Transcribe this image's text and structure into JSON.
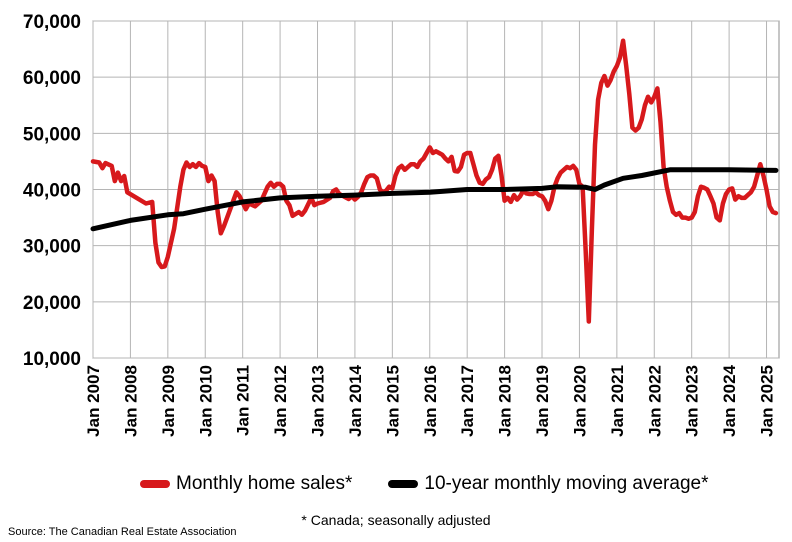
{
  "chart_data": {
    "type": "line",
    "title": "",
    "xlabel": "",
    "ylabel": "",
    "ylim": [
      10000,
      70000
    ],
    "yticks": [
      10000,
      20000,
      30000,
      40000,
      50000,
      60000,
      70000
    ],
    "ytick_labels": [
      "10,000",
      "20,000",
      "30,000",
      "40,000",
      "50,000",
      "60,000",
      "70,000"
    ],
    "xlim": [
      "2007-01",
      "2025-05"
    ],
    "xtick_labels": [
      "Jan 2007",
      "Jan 2008",
      "Jan 2009",
      "Jan 2010",
      "Jan 2011",
      "Jan 2012",
      "Jan 2013",
      "Jan 2014",
      "Jan 2015",
      "Jan 2016",
      "Jan 2017",
      "Jan 2018",
      "Jan 2019",
      "Jan 2020",
      "Jan 2021",
      "Jan 2022",
      "Jan 2023",
      "Jan 2024",
      "Jan 2025"
    ],
    "grid": true,
    "legend_placement": "bottom",
    "series": [
      {
        "name": "Monthly home sales*",
        "color": "#d7191c",
        "points": [
          [
            "2007-01",
            45000
          ],
          [
            "2007-03",
            44800
          ],
          [
            "2007-04",
            43800
          ],
          [
            "2007-05",
            44700
          ],
          [
            "2007-07",
            44200
          ],
          [
            "2007-08",
            41500
          ],
          [
            "2007-09",
            43000
          ],
          [
            "2007-10",
            41500
          ],
          [
            "2007-11",
            42400
          ],
          [
            "2007-12",
            39500
          ],
          [
            "2008-03",
            38500
          ],
          [
            "2008-06",
            37500
          ],
          [
            "2008-08",
            37800
          ],
          [
            "2008-09",
            30500
          ],
          [
            "2008-10",
            27000
          ],
          [
            "2008-11",
            26200
          ],
          [
            "2008-12",
            26300
          ],
          [
            "2009-01",
            28000
          ],
          [
            "2009-03",
            33000
          ],
          [
            "2009-05",
            40500
          ],
          [
            "2009-06",
            43500
          ],
          [
            "2009-07",
            44800
          ],
          [
            "2009-08",
            44000
          ],
          [
            "2009-09",
            44500
          ],
          [
            "2009-10",
            44000
          ],
          [
            "2009-11",
            44700
          ],
          [
            "2009-12",
            44200
          ],
          [
            "2010-01",
            44000
          ],
          [
            "2010-02",
            41500
          ],
          [
            "2010-03",
            42500
          ],
          [
            "2010-04",
            41500
          ],
          [
            "2010-05",
            36000
          ],
          [
            "2010-06",
            32200
          ],
          [
            "2010-07",
            33500
          ],
          [
            "2010-08",
            35000
          ],
          [
            "2010-09",
            36500
          ],
          [
            "2010-10",
            38000
          ],
          [
            "2010-11",
            39500
          ],
          [
            "2010-12",
            38800
          ],
          [
            "2011-02",
            36500
          ],
          [
            "2011-03",
            37500
          ],
          [
            "2011-05",
            37000
          ],
          [
            "2011-07",
            38000
          ],
          [
            "2011-09",
            40500
          ],
          [
            "2011-10",
            41200
          ],
          [
            "2011-11",
            40500
          ],
          [
            "2011-12",
            41000
          ],
          [
            "2012-01",
            41000
          ],
          [
            "2012-02",
            40500
          ],
          [
            "2012-03",
            38000
          ],
          [
            "2012-04",
            37200
          ],
          [
            "2012-05",
            35300
          ],
          [
            "2012-07",
            36000
          ],
          [
            "2012-08",
            35500
          ],
          [
            "2012-09",
            36200
          ],
          [
            "2012-11",
            38500
          ],
          [
            "2012-12",
            37200
          ],
          [
            "2013-01",
            37500
          ],
          [
            "2013-03",
            37800
          ],
          [
            "2013-05",
            38500
          ],
          [
            "2013-06",
            39700
          ],
          [
            "2013-07",
            40000
          ],
          [
            "2013-08",
            39200
          ],
          [
            "2013-10",
            38600
          ],
          [
            "2013-11",
            38300
          ],
          [
            "2013-12",
            38800
          ],
          [
            "2014-01",
            38200
          ],
          [
            "2014-02",
            38700
          ],
          [
            "2014-03",
            39500
          ],
          [
            "2014-04",
            41000
          ],
          [
            "2014-05",
            42200
          ],
          [
            "2014-06",
            42500
          ],
          [
            "2014-07",
            42500
          ],
          [
            "2014-08",
            42000
          ],
          [
            "2014-09",
            40000
          ],
          [
            "2014-10",
            39500
          ],
          [
            "2014-11",
            39800
          ],
          [
            "2014-12",
            40500
          ],
          [
            "2015-01",
            40200
          ],
          [
            "2015-02",
            42500
          ],
          [
            "2015-03",
            43800
          ],
          [
            "2015-04",
            44200
          ],
          [
            "2015-05",
            43500
          ],
          [
            "2015-06",
            44000
          ],
          [
            "2015-07",
            44500
          ],
          [
            "2015-08",
            44500
          ],
          [
            "2015-09",
            44000
          ],
          [
            "2015-10",
            45000
          ],
          [
            "2015-11",
            45500
          ],
          [
            "2015-12",
            46500
          ],
          [
            "2016-01",
            47500
          ],
          [
            "2016-02",
            46500
          ],
          [
            "2016-03",
            46800
          ],
          [
            "2016-04",
            46500
          ],
          [
            "2016-05",
            46200
          ],
          [
            "2016-06",
            45500
          ],
          [
            "2016-07",
            45000
          ],
          [
            "2016-08",
            45800
          ],
          [
            "2016-09",
            43300
          ],
          [
            "2016-10",
            43200
          ],
          [
            "2016-11",
            44000
          ],
          [
            "2016-12",
            46200
          ],
          [
            "2017-01",
            46500
          ],
          [
            "2017-02",
            46500
          ],
          [
            "2017-03",
            44500
          ],
          [
            "2017-04",
            42500
          ],
          [
            "2017-05",
            41200
          ],
          [
            "2017-06",
            41000
          ],
          [
            "2017-07",
            41800
          ],
          [
            "2017-08",
            42200
          ],
          [
            "2017-09",
            43500
          ],
          [
            "2017-10",
            45500
          ],
          [
            "2017-11",
            46000
          ],
          [
            "2017-12",
            42500
          ],
          [
            "2018-01",
            38000
          ],
          [
            "2018-02",
            38500
          ],
          [
            "2018-03",
            37800
          ],
          [
            "2018-04",
            39000
          ],
          [
            "2018-05",
            38200
          ],
          [
            "2018-06",
            38800
          ],
          [
            "2018-07",
            39800
          ],
          [
            "2018-08",
            39300
          ],
          [
            "2018-09",
            39200
          ],
          [
            "2018-10",
            39200
          ],
          [
            "2018-11",
            39500
          ],
          [
            "2018-12",
            39000
          ],
          [
            "2019-01",
            38800
          ],
          [
            "2019-02",
            38000
          ],
          [
            "2019-03",
            36500
          ],
          [
            "2019-04",
            38000
          ],
          [
            "2019-05",
            40500
          ],
          [
            "2019-06",
            42000
          ],
          [
            "2019-07",
            43000
          ],
          [
            "2019-08",
            43500
          ],
          [
            "2019-09",
            44000
          ],
          [
            "2019-10",
            43800
          ],
          [
            "2019-11",
            44200
          ],
          [
            "2019-12",
            43500
          ],
          [
            "2020-01",
            41000
          ],
          [
            "2020-02",
            40500
          ],
          [
            "2020-03",
            29000
          ],
          [
            "2020-04",
            16500
          ],
          [
            "2020-05",
            33000
          ],
          [
            "2020-06",
            48000
          ],
          [
            "2020-07",
            56000
          ],
          [
            "2020-08",
            59000
          ],
          [
            "2020-09",
            60200
          ],
          [
            "2020-10",
            58500
          ],
          [
            "2020-11",
            59500
          ],
          [
            "2020-12",
            61000
          ],
          [
            "2021-01",
            62000
          ],
          [
            "2021-02",
            63500
          ],
          [
            "2021-03",
            66500
          ],
          [
            "2021-04",
            62000
          ],
          [
            "2021-05",
            57000
          ],
          [
            "2021-06",
            51000
          ],
          [
            "2021-07",
            50500
          ],
          [
            "2021-08",
            51000
          ],
          [
            "2021-09",
            52500
          ],
          [
            "2021-10",
            55000
          ],
          [
            "2021-11",
            56500
          ],
          [
            "2021-12",
            55500
          ],
          [
            "2022-01",
            56500
          ],
          [
            "2022-02",
            58000
          ],
          [
            "2022-03",
            52000
          ],
          [
            "2022-04",
            44000
          ],
          [
            "2022-05",
            40500
          ],
          [
            "2022-06",
            38000
          ],
          [
            "2022-07",
            36000
          ],
          [
            "2022-08",
            35500
          ],
          [
            "2022-09",
            35800
          ],
          [
            "2022-10",
            35000
          ],
          [
            "2022-11",
            35000
          ],
          [
            "2022-12",
            34800
          ],
          [
            "2023-01",
            35000
          ],
          [
            "2023-02",
            36000
          ],
          [
            "2023-03",
            38800
          ],
          [
            "2023-04",
            40500
          ],
          [
            "2023-05",
            40300
          ],
          [
            "2023-06",
            40000
          ],
          [
            "2023-07",
            38800
          ],
          [
            "2023-08",
            37500
          ],
          [
            "2023-09",
            35000
          ],
          [
            "2023-10",
            34500
          ],
          [
            "2023-11",
            37500
          ],
          [
            "2023-12",
            39200
          ],
          [
            "2024-01",
            40000
          ],
          [
            "2024-02",
            40200
          ],
          [
            "2024-03",
            38200
          ],
          [
            "2024-04",
            38800
          ],
          [
            "2024-05",
            38500
          ],
          [
            "2024-06",
            38500
          ],
          [
            "2024-07",
            39000
          ],
          [
            "2024-08",
            39500
          ],
          [
            "2024-09",
            40500
          ],
          [
            "2024-10",
            42500
          ],
          [
            "2024-11",
            44500
          ],
          [
            "2024-12",
            42500
          ],
          [
            "2025-01",
            40000
          ],
          [
            "2025-02",
            37000
          ],
          [
            "2025-03",
            36000
          ],
          [
            "2025-04",
            35800
          ]
        ]
      },
      {
        "name": "10-year monthly moving average*",
        "color": "#000000",
        "points": [
          [
            "2007-01",
            33000
          ],
          [
            "2008-01",
            34500
          ],
          [
            "2009-01",
            35500
          ],
          [
            "2009-06",
            35700
          ],
          [
            "2010-01",
            36500
          ],
          [
            "2011-01",
            37800
          ],
          [
            "2012-01",
            38500
          ],
          [
            "2013-01",
            38800
          ],
          [
            "2014-01",
            39000
          ],
          [
            "2015-01",
            39300
          ],
          [
            "2016-01",
            39500
          ],
          [
            "2017-01",
            40000
          ],
          [
            "2018-01",
            40000
          ],
          [
            "2019-01",
            40200
          ],
          [
            "2019-06",
            40500
          ],
          [
            "2020-03",
            40400
          ],
          [
            "2020-06",
            40000
          ],
          [
            "2020-09",
            40800
          ],
          [
            "2021-03",
            42000
          ],
          [
            "2021-09",
            42500
          ],
          [
            "2022-06",
            43500
          ],
          [
            "2023-01",
            43500
          ],
          [
            "2024-01",
            43500
          ],
          [
            "2025-04",
            43400
          ]
        ]
      }
    ],
    "footnote": "* Canada; seasonally adjusted",
    "source": "Source: The Canadian Real Estate Association"
  }
}
